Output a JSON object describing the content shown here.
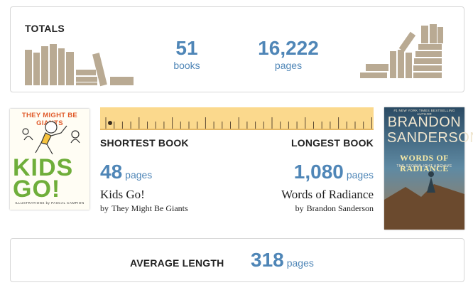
{
  "totals": {
    "title": "TOTALS",
    "books_count": "51",
    "books_unit": "books",
    "pages_count": "16,222",
    "pages_unit": "pages"
  },
  "shortest": {
    "heading": "SHORTEST BOOK",
    "pages": "48",
    "pages_unit": "pages",
    "title": "Kids Go!",
    "by": "by",
    "author": "They Might Be Giants",
    "cover": {
      "top_text": "THEY MIGHT BE GIANTS",
      "big_text": "KIDS GO!",
      "sub_text": "ILLUSTRATIONS by PASCAL CAMPION"
    }
  },
  "longest": {
    "heading": "LONGEST BOOK",
    "pages": "1,080",
    "pages_unit": "pages",
    "title": "Words of Radiance",
    "by": "by",
    "author": "Brandon Sanderson",
    "cover": {
      "small_text": "#1 NEW YORK TIMES BESTSELLING AUTHOR",
      "author_line1": "BRANDON",
      "author_line2": "SANDERSON",
      "title_text": "WORDS OF RADIANCE",
      "series_text": "THE STORMLIGHT ARCHIVE"
    }
  },
  "average": {
    "heading": "AVERAGE LENGTH",
    "pages": "318",
    "pages_unit": "pages"
  },
  "colors": {
    "accent": "#4f86b7",
    "book_tan": "#b9aa93",
    "ruler_fill": "#fbd98d",
    "ruler_marks": "#5c4a33",
    "card_border": "#d7d7d7"
  },
  "icons": {
    "books_left": "book-stack-icon",
    "books_right": "book-stack-icon",
    "ruler": "ruler-icon"
  }
}
